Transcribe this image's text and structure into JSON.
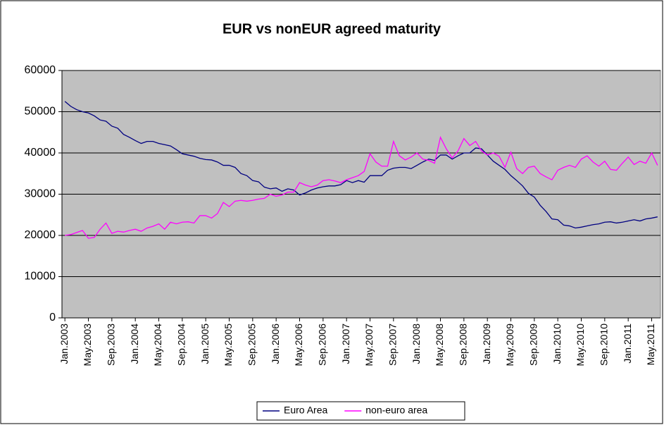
{
  "chart_data": {
    "type": "line",
    "title": "EUR vs nonEUR agreed maturity",
    "categories": [
      "Jan.2003",
      null,
      null,
      null,
      "May.2003",
      null,
      null,
      null,
      "Sep.2003",
      null,
      null,
      null,
      "Jan.2004",
      null,
      null,
      null,
      "May.2004",
      null,
      null,
      null,
      "Sep.2004",
      null,
      null,
      null,
      "Jan.2005",
      null,
      null,
      null,
      "May.2005",
      null,
      null,
      null,
      "Sep.2005",
      null,
      null,
      null,
      "Jan.2006",
      null,
      null,
      null,
      "May.2006",
      null,
      null,
      null,
      "Sep.2006",
      null,
      null,
      null,
      "Jan.2007",
      null,
      null,
      null,
      "May.2007",
      null,
      null,
      null,
      "Sep.2007",
      null,
      null,
      null,
      "Jan.2008",
      null,
      null,
      null,
      "May.2008",
      null,
      null,
      null,
      "Sep.2008",
      null,
      null,
      null,
      "Jan.2009",
      null,
      null,
      null,
      "May.2009",
      null,
      null,
      null,
      "Sep.2009",
      null,
      null,
      null,
      "Jan.2010",
      null,
      null,
      null,
      "May.2010",
      null,
      null,
      null,
      "Sep.2010",
      null,
      null,
      null,
      "Jan.2011",
      null,
      null,
      null,
      "May.2011",
      null
    ],
    "series": [
      {
        "name": "Euro Area",
        "color": "#000080",
        "values": [
          52500,
          51300,
          50500,
          50000,
          49700,
          49000,
          48000,
          47700,
          46500,
          46000,
          44500,
          43800,
          43000,
          42300,
          42800,
          42800,
          42300,
          42000,
          41700,
          40800,
          39800,
          39500,
          39200,
          38700,
          38400,
          38300,
          37800,
          37000,
          37000,
          36500,
          35000,
          34500,
          33300,
          33000,
          31700,
          31300,
          31500,
          30700,
          31300,
          31000,
          29800,
          30300,
          31000,
          31500,
          31800,
          32000,
          32000,
          32300,
          33300,
          32800,
          33300,
          32900,
          34500,
          34500,
          34500,
          35800,
          36300,
          36500,
          36500,
          36200,
          37000,
          37800,
          38500,
          38200,
          39500,
          39500,
          38500,
          39300,
          40000,
          40000,
          41200,
          41000,
          39500,
          38000,
          37000,
          36000,
          34500,
          33300,
          32000,
          30200,
          29300,
          27300,
          25800,
          24000,
          23800,
          22500,
          22300,
          21800,
          22000,
          22300,
          22600,
          22800,
          23200,
          23300,
          23000,
          23200,
          23500,
          23800,
          23500,
          24000,
          24200,
          24500
        ]
      },
      {
        "name": "non-euro area",
        "color": "#ff00ff",
        "values": [
          20000,
          20200,
          20700,
          21200,
          19300,
          19500,
          21500,
          23000,
          20500,
          21000,
          20800,
          21200,
          21500,
          21000,
          21800,
          22200,
          22800,
          21500,
          23200,
          22800,
          23200,
          23300,
          23000,
          24800,
          24800,
          24200,
          25300,
          28000,
          27000,
          28300,
          28500,
          28300,
          28500,
          28800,
          29000,
          30000,
          29500,
          29800,
          30500,
          30500,
          32800,
          32200,
          31800,
          32200,
          33300,
          33500,
          33200,
          32800,
          33500,
          34000,
          34500,
          35500,
          39800,
          37800,
          36800,
          36800,
          42800,
          39300,
          38300,
          39000,
          40000,
          38500,
          38200,
          37500,
          43800,
          41000,
          38800,
          40500,
          43500,
          41800,
          42800,
          40500,
          39500,
          40000,
          39200,
          36500,
          40200,
          36200,
          35000,
          36500,
          36800,
          35000,
          34200,
          33500,
          35800,
          36500,
          37000,
          36500,
          38500,
          39300,
          37800,
          36800,
          38000,
          36000,
          35800,
          37500,
          39000,
          37200,
          38000,
          37500,
          40000,
          37000
        ]
      }
    ],
    "ylim": [
      0,
      60000
    ],
    "yticks": [
      0,
      10000,
      20000,
      30000,
      40000,
      50000,
      60000
    ],
    "grid": true,
    "legend": "bottom",
    "plot_background": "#c0c0c0"
  }
}
